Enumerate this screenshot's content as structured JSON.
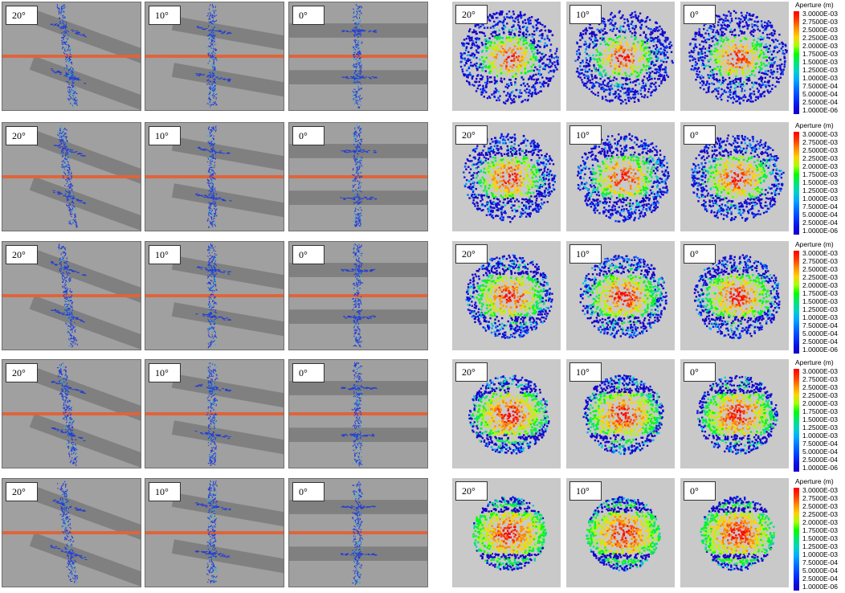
{
  "side_view_labels": [
    "20°",
    "10°",
    "0°"
  ],
  "top_view_labels": [
    "20°",
    "10°",
    "0°"
  ],
  "legend": {
    "title": "Aperture (m)",
    "ticks": [
      "3.0000E-03",
      "2.7500E-03",
      "2.5000E-03",
      "2.2500E-03",
      "2.0000E-03",
      "1.7500E-03",
      "1.5000E-03",
      "1.2500E-03",
      "1.0000E-03",
      "7.5000E-04",
      "5.0000E-04",
      "2.5000E-04",
      "1.0000E-06"
    ],
    "colors": [
      "#ff0000",
      "#ff3a00",
      "#ff8c00",
      "#ffd200",
      "#a8ff00",
      "#00ff00",
      "#00e676",
      "#00d2c8",
      "#00aaff",
      "#0070ff",
      "#0040ff",
      "#0a14e6",
      "#1400c8"
    ]
  },
  "colors": {
    "side_background": "#a0a0a0",
    "band": "#7c7c7c",
    "horizontal_line": "#e0643a",
    "fracture": "#1e3cd8",
    "top_background": "#c9c9c9"
  }
}
